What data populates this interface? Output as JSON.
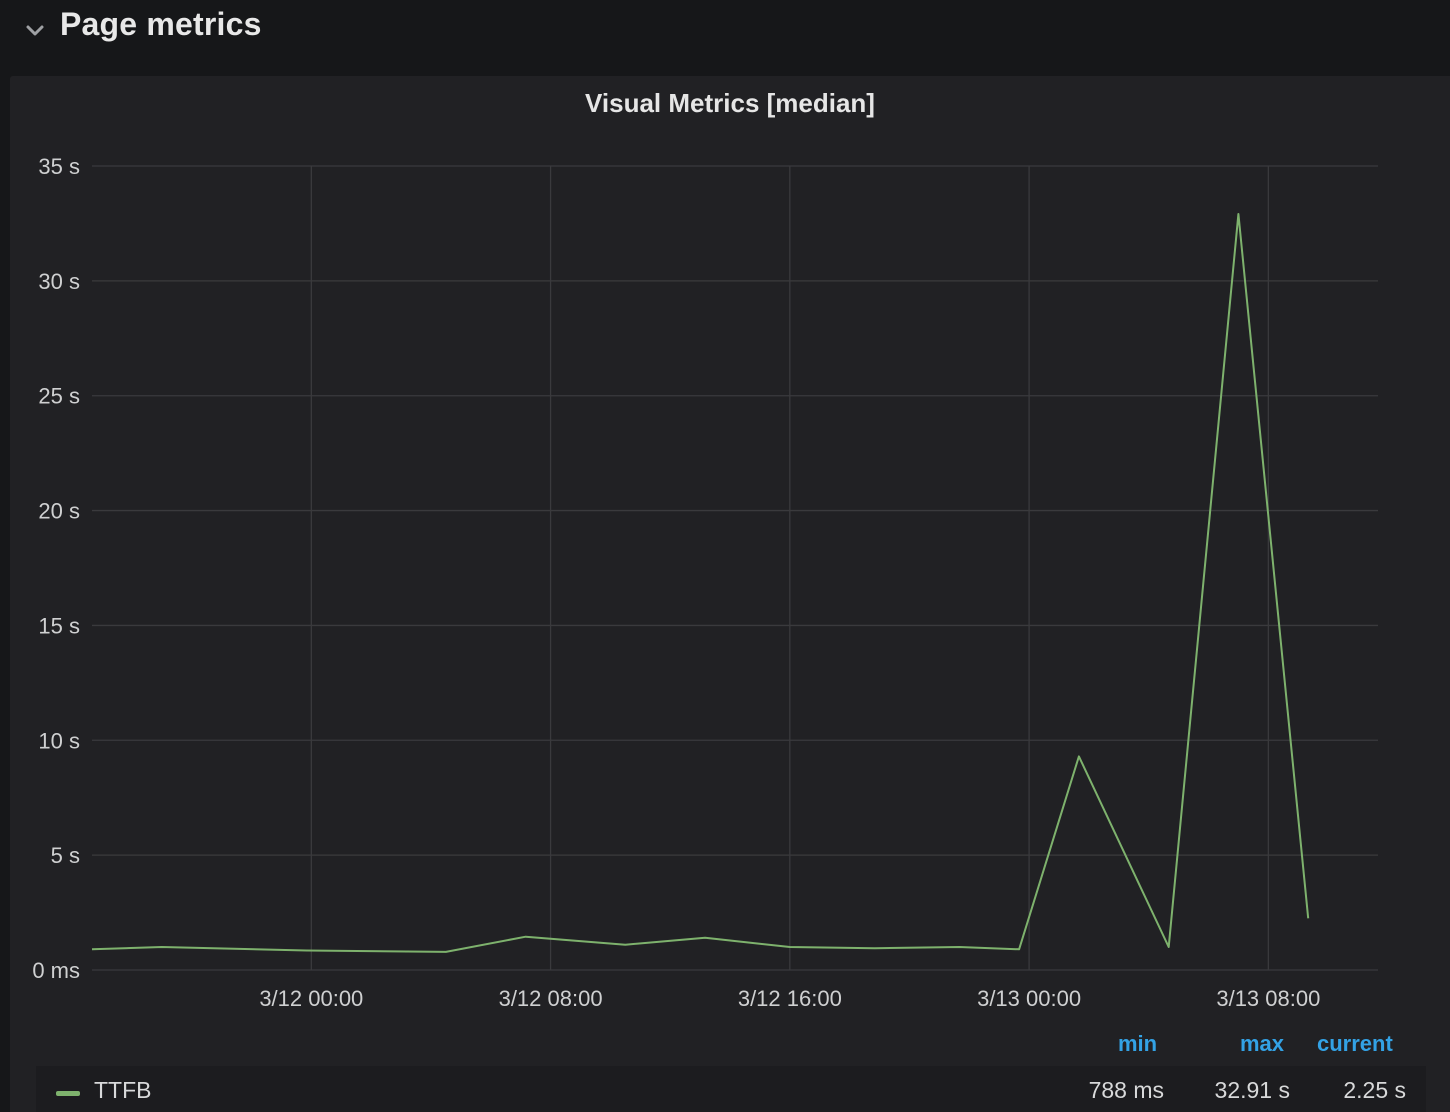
{
  "row": {
    "title": "Page metrics",
    "chevron_icon": "chevron-down-icon"
  },
  "panel": {
    "title": "Visual Metrics [median]"
  },
  "legend": {
    "headers": {
      "min": "min",
      "max": "max",
      "current": "current"
    },
    "series": [
      {
        "name": "TTFB",
        "color": "#7eb26d",
        "min": "788 ms",
        "max": "32.91 s",
        "current": "2.25 s"
      }
    ]
  },
  "colors": {
    "series": "#7eb26d",
    "grid": "#3a3a3d",
    "legend_header": "#33a2e5"
  },
  "chart_data": {
    "type": "line",
    "title": "Visual Metrics [median]",
    "xlabel": "",
    "ylabel": "",
    "grid": true,
    "legend_placement": "bottom",
    "x_ticks": [
      "3/12 00:00",
      "3/12 08:00",
      "3/12 16:00",
      "3/13 00:00",
      "3/13 08:00"
    ],
    "x_range": [
      "3/11 16:40",
      "3/13 11:40"
    ],
    "y_ticks": [
      "0 ms",
      "5 s",
      "10 s",
      "15 s",
      "20 s",
      "25 s",
      "30 s",
      "35 s"
    ],
    "ylim": [
      0,
      35
    ],
    "y_unit": "s",
    "series": [
      {
        "name": "TTFB",
        "points": [
          {
            "x": "3/11 16:40",
            "y": 0.9
          },
          {
            "x": "3/11 19:00",
            "y": 1.0
          },
          {
            "x": "3/11 23:50",
            "y": 0.85
          },
          {
            "x": "3/12 04:30",
            "y": 0.788
          },
          {
            "x": "3/12 07:10",
            "y": 1.45
          },
          {
            "x": "3/12 10:30",
            "y": 1.1
          },
          {
            "x": "3/12 13:10",
            "y": 1.4
          },
          {
            "x": "3/12 16:00",
            "y": 1.0
          },
          {
            "x": "3/12 18:50",
            "y": 0.95
          },
          {
            "x": "3/12 21:40",
            "y": 1.0
          },
          {
            "x": "3/12 23:40",
            "y": 0.9
          },
          {
            "x": "3/13 01:40",
            "y": 9.3
          },
          {
            "x": "3/13 04:40",
            "y": 1.0
          },
          {
            "x": "3/13 07:00",
            "y": 32.91
          },
          {
            "x": "3/13 09:20",
            "y": 2.25
          }
        ]
      }
    ]
  }
}
